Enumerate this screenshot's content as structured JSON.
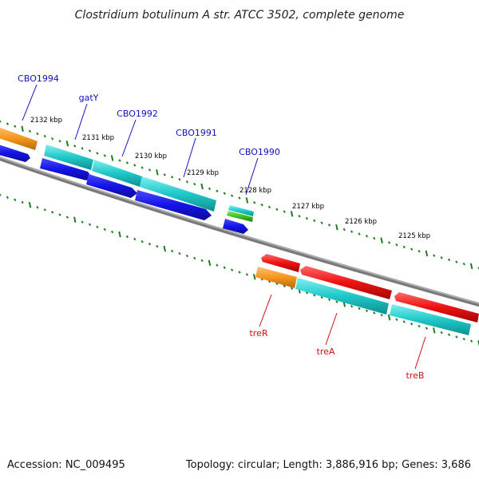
{
  "title": "Clostridium botulinum A str. ATCC 3502, complete genome",
  "footer": {
    "accession": "Accession: NC_009495",
    "summary": "Topology: circular; Length: 3,886,916 bp; Genes: 3,686"
  },
  "colors": {
    "backbone": "#7a7a7a",
    "tick": "#1e7d1e",
    "forward_label": "#1010c0",
    "reverse_label": "#d01010",
    "cds_blue": "#1414e6",
    "rrna_cyan": "#1fc8c8",
    "orange": "#f5961e",
    "red": "#ee1111",
    "green": "#3ec21f"
  },
  "kbp_labels": [
    "2132 kbp",
    "2131 kbp",
    "2130 kbp",
    "2129 kbp",
    "2128 kbp",
    "2127 kbp",
    "2126 kbp",
    "2125 kbp"
  ],
  "forward_genes": [
    {
      "name": "CBO1994",
      "color_key": "forward_label"
    },
    {
      "name": "gatY",
      "color_key": "forward_label"
    },
    {
      "name": "CBO1992",
      "color_key": "forward_label"
    },
    {
      "name": "CBO1991",
      "color_key": "forward_label"
    },
    {
      "name": "CBO1990",
      "color_key": "forward_label"
    }
  ],
  "reverse_genes": [
    {
      "name": "treR",
      "color_key": "reverse_label"
    },
    {
      "name": "treA",
      "color_key": "reverse_label"
    },
    {
      "name": "treB",
      "color_key": "reverse_label"
    }
  ]
}
